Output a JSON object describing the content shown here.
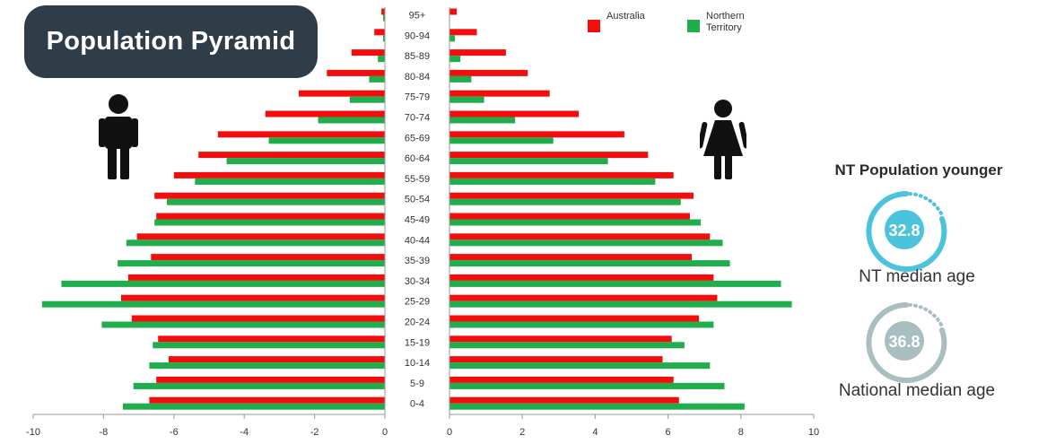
{
  "title": "Population Pyramid",
  "stat_panel": {
    "heading": "NT Population younger",
    "nt_value": "32.8",
    "nt_label": "NT median age",
    "national_value": "36.8",
    "national_label": "National median age"
  },
  "colors": {
    "australia": "#f40d0d",
    "nt": "#1fae4b",
    "nt_ring": "#4cc3dc",
    "national_ring": "#a9bec0",
    "title_bg": "#2f3d48"
  },
  "icons": [
    "male-person-icon",
    "female-person-icon"
  ],
  "chart_data": {
    "type": "bar",
    "orientation": "horizontal",
    "layout": "population-pyramid",
    "title": "Population Pyramid",
    "categories": [
      "95+",
      "90-94",
      "85-89",
      "80-84",
      "75-79",
      "70-74",
      "65-69",
      "60-64",
      "55-59",
      "50-54",
      "45-49",
      "40-44",
      "35-39",
      "30-34",
      "25-29",
      "20-24",
      "15-19",
      "10-14",
      "5-9",
      "0-4"
    ],
    "x_left_ticks": [
      "-10",
      "-8",
      "-6",
      "-4",
      "-2",
      "0"
    ],
    "x_right_ticks": [
      "0",
      "2",
      "4",
      "6",
      "8",
      "10"
    ],
    "xlim_left": [
      -10,
      0
    ],
    "xlim_right": [
      0,
      10
    ],
    "legend": {
      "position": "top-right",
      "entries": [
        "Australia",
        "Northern",
        "Territory"
      ]
    },
    "series": [
      {
        "name": "Australia",
        "side": "male",
        "values": [
          -0.1,
          -0.3,
          -0.95,
          -1.65,
          -2.45,
          -3.4,
          -4.75,
          -5.3,
          -6.0,
          -6.55,
          -6.5,
          -7.05,
          -6.65,
          -7.3,
          -7.5,
          -7.2,
          -6.45,
          -6.15,
          -6.5,
          -6.7
        ]
      },
      {
        "name": "Northern Territory",
        "side": "male",
        "values": [
          -0.05,
          -0.05,
          -0.2,
          -0.45,
          -1.0,
          -1.9,
          -3.3,
          -4.5,
          -5.4,
          -6.2,
          -6.55,
          -7.35,
          -7.6,
          -9.2,
          -9.75,
          -8.05,
          -6.6,
          -6.7,
          -7.15,
          -7.45
        ]
      },
      {
        "name": "Australia",
        "side": "female",
        "values": [
          0.2,
          0.75,
          1.55,
          2.15,
          2.75,
          3.55,
          4.8,
          5.45,
          6.15,
          6.7,
          6.6,
          7.15,
          6.65,
          7.25,
          7.35,
          6.85,
          6.1,
          5.85,
          6.15,
          6.3
        ]
      },
      {
        "name": "Northern Territory",
        "side": "female",
        "values": [
          0.0,
          0.15,
          0.3,
          0.6,
          0.95,
          1.8,
          2.85,
          4.35,
          5.65,
          6.35,
          6.9,
          7.5,
          7.7,
          9.1,
          9.4,
          7.25,
          6.45,
          7.15,
          7.55,
          8.1
        ]
      }
    ]
  }
}
